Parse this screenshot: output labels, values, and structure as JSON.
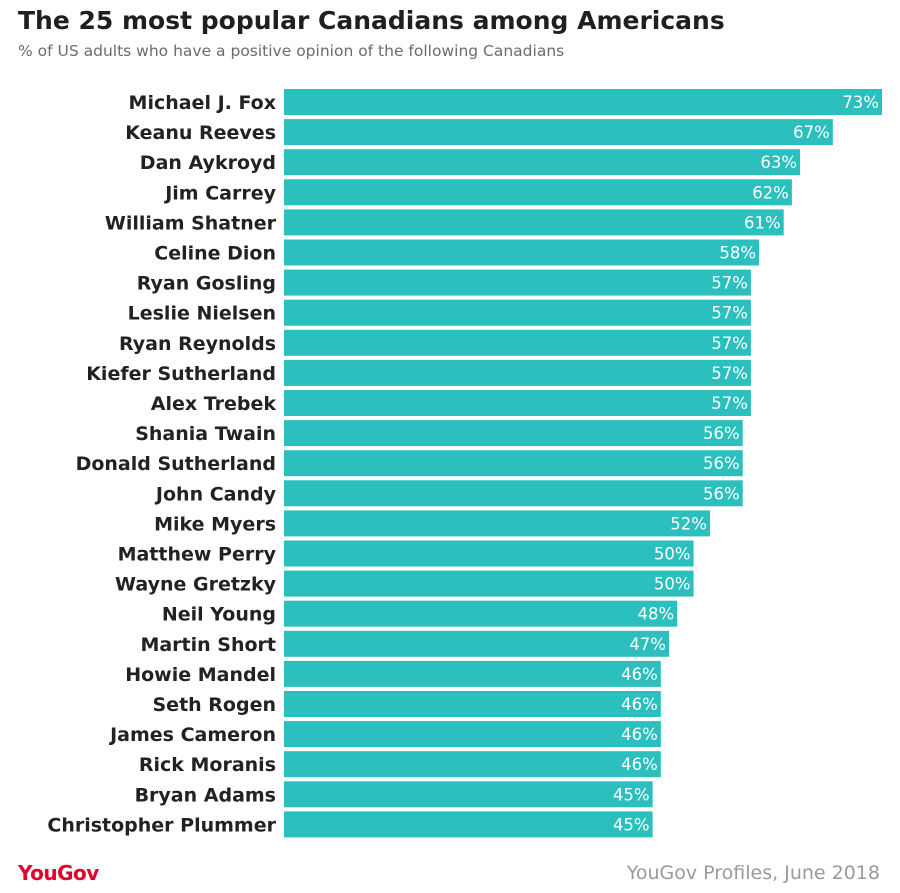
{
  "header": {
    "title": "The 25 most popular Canadians among Americans",
    "subtitle": "% of US adults who have a positive opinion of the following Canadians"
  },
  "footer": {
    "brand": "YouGov",
    "source": "YouGov Profiles, June 2018"
  },
  "colors": {
    "bar": "#2bbfbd",
    "brand": "#e3002b"
  },
  "chart_data": {
    "type": "bar",
    "orientation": "horizontal",
    "title": "The 25 most popular Canadians among Americans",
    "subtitle": "% of US adults who have a positive opinion of the following Canadians",
    "categories": [
      "Michael J. Fox",
      "Keanu Reeves",
      "Dan Aykroyd",
      "Jim Carrey",
      "William Shatner",
      "Celine Dion",
      "Ryan Gosling",
      "Leslie Nielsen",
      "Ryan Reynolds",
      "Kiefer Sutherland",
      "Alex Trebek",
      "Shania Twain",
      "Donald Sutherland",
      "John Candy",
      "Mike Myers",
      "Matthew Perry",
      "Wayne Gretzky",
      "Neil Young",
      "Martin Short",
      "Howie Mandel",
      "Seth Rogen",
      "James Cameron",
      "Rick Moranis",
      "Bryan Adams",
      "Christopher Plummer"
    ],
    "values": [
      73,
      67,
      63,
      62,
      61,
      58,
      57,
      57,
      57,
      57,
      57,
      56,
      56,
      56,
      52,
      50,
      50,
      48,
      47,
      46,
      46,
      46,
      46,
      45,
      45
    ],
    "value_labels": [
      "73%",
      "67%",
      "63%",
      "62%",
      "61%",
      "58%",
      "57%",
      "57%",
      "57%",
      "57%",
      "57%",
      "56%",
      "56%",
      "56%",
      "52%",
      "50%",
      "50%",
      "48%",
      "47%",
      "46%",
      "46%",
      "46%",
      "46%",
      "45%",
      "45%"
    ],
    "xlim": [
      0,
      73
    ],
    "grid": false,
    "legend": "none"
  }
}
